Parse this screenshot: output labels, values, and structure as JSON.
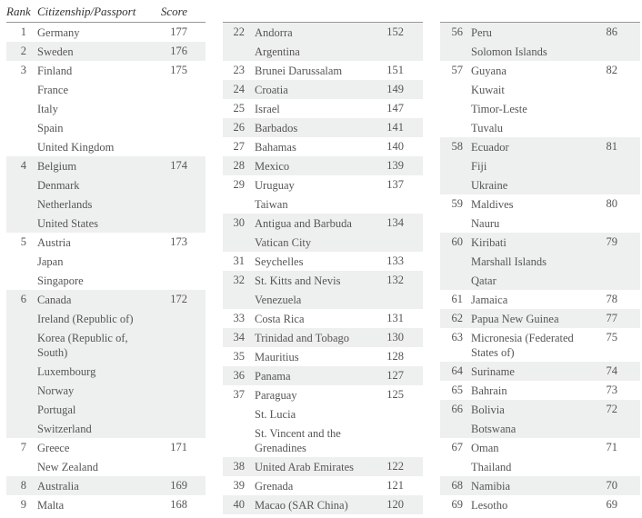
{
  "header": {
    "rank": "Rank",
    "country": "Citizenship/Passport",
    "score": "Score"
  },
  "columns": [
    {
      "groups": [
        {
          "rank": "1",
          "score": "177",
          "countries": [
            "Germany"
          ]
        },
        {
          "rank": "2",
          "score": "176",
          "countries": [
            "Sweden"
          ]
        },
        {
          "rank": "3",
          "score": "175",
          "countries": [
            "Finland",
            "France",
            "Italy",
            "Spain",
            "United Kingdom"
          ]
        },
        {
          "rank": "4",
          "score": "174",
          "countries": [
            "Belgium",
            "Denmark",
            "Netherlands",
            "United States"
          ]
        },
        {
          "rank": "5",
          "score": "173",
          "countries": [
            "Austria",
            "Japan",
            "Singapore"
          ]
        },
        {
          "rank": "6",
          "score": "172",
          "countries": [
            "Canada",
            "Ireland (Republic of)",
            "Korea (Republic of, South)",
            "Luxembourg",
            "Norway",
            "Portugal",
            "Switzerland"
          ]
        },
        {
          "rank": "7",
          "score": "171",
          "countries": [
            "Greece",
            "New Zealand"
          ]
        },
        {
          "rank": "8",
          "score": "169",
          "countries": [
            "Australia"
          ]
        },
        {
          "rank": "9",
          "score": "168",
          "countries": [
            "Malta"
          ]
        }
      ]
    },
    {
      "groups": [
        {
          "rank": "22",
          "score": "152",
          "countries": [
            "Andorra",
            "Argentina"
          ]
        },
        {
          "rank": "23",
          "score": "151",
          "countries": [
            "Brunei Darussalam"
          ]
        },
        {
          "rank": "24",
          "score": "149",
          "countries": [
            "Croatia"
          ]
        },
        {
          "rank": "25",
          "score": "147",
          "countries": [
            "Israel"
          ]
        },
        {
          "rank": "26",
          "score": "141",
          "countries": [
            "Barbados"
          ]
        },
        {
          "rank": "27",
          "score": "140",
          "countries": [
            "Bahamas"
          ]
        },
        {
          "rank": "28",
          "score": "139",
          "countries": [
            "Mexico"
          ]
        },
        {
          "rank": "29",
          "score": "137",
          "countries": [
            "Uruguay",
            "Taiwan"
          ]
        },
        {
          "rank": "30",
          "score": "134",
          "countries": [
            "Antigua and Barbuda",
            "Vatican City"
          ]
        },
        {
          "rank": "31",
          "score": "133",
          "countries": [
            "Seychelles"
          ]
        },
        {
          "rank": "32",
          "score": "132",
          "countries": [
            "St. Kitts and Nevis",
            "Venezuela"
          ]
        },
        {
          "rank": "33",
          "score": "131",
          "countries": [
            "Costa Rica"
          ]
        },
        {
          "rank": "34",
          "score": "130",
          "countries": [
            "Trinidad and Tobago"
          ]
        },
        {
          "rank": "35",
          "score": "128",
          "countries": [
            "Mauritius"
          ]
        },
        {
          "rank": "36",
          "score": "127",
          "countries": [
            "Panama"
          ]
        },
        {
          "rank": "37",
          "score": "125",
          "countries": [
            "Paraguay",
            "St. Lucia",
            "St. Vincent and the Grenadines"
          ]
        },
        {
          "rank": "38",
          "score": "122",
          "countries": [
            "United Arab Emirates"
          ]
        },
        {
          "rank": "39",
          "score": "121",
          "countries": [
            "Grenada"
          ]
        },
        {
          "rank": "40",
          "score": "120",
          "countries": [
            "Macao (SAR China)"
          ]
        }
      ]
    },
    {
      "groups": [
        {
          "rank": "56",
          "score": "86",
          "countries": [
            "Peru",
            "Solomon Islands"
          ]
        },
        {
          "rank": "57",
          "score": "82",
          "countries": [
            "Guyana",
            "Kuwait",
            "Timor-Leste",
            "Tuvalu"
          ]
        },
        {
          "rank": "58",
          "score": "81",
          "countries": [
            "Ecuador",
            "Fiji",
            "Ukraine"
          ]
        },
        {
          "rank": "59",
          "score": "80",
          "countries": [
            "Maldives",
            "Nauru"
          ]
        },
        {
          "rank": "60",
          "score": "79",
          "countries": [
            "Kiribati",
            "Marshall Islands",
            "Qatar"
          ]
        },
        {
          "rank": "61",
          "score": "78",
          "countries": [
            "Jamaica"
          ]
        },
        {
          "rank": "62",
          "score": "77",
          "countries": [
            "Papua New Guinea"
          ]
        },
        {
          "rank": "63",
          "score": "75",
          "countries": [
            "Micronesia (Federated States of)"
          ]
        },
        {
          "rank": "64",
          "score": "74",
          "countries": [
            "Suriname"
          ]
        },
        {
          "rank": "65",
          "score": "73",
          "countries": [
            "Bahrain"
          ]
        },
        {
          "rank": "66",
          "score": "72",
          "countries": [
            "Bolivia",
            "Botswana"
          ]
        },
        {
          "rank": "67",
          "score": "71",
          "countries": [
            "Oman",
            "Thailand"
          ]
        },
        {
          "rank": "68",
          "score": "70",
          "countries": [
            "Namibia"
          ]
        },
        {
          "rank": "69",
          "score": "69",
          "countries": [
            "Lesotho"
          ]
        }
      ]
    }
  ],
  "colors": {
    "shade": "#eef0ef",
    "text": "#555555",
    "rule": "#999999"
  }
}
